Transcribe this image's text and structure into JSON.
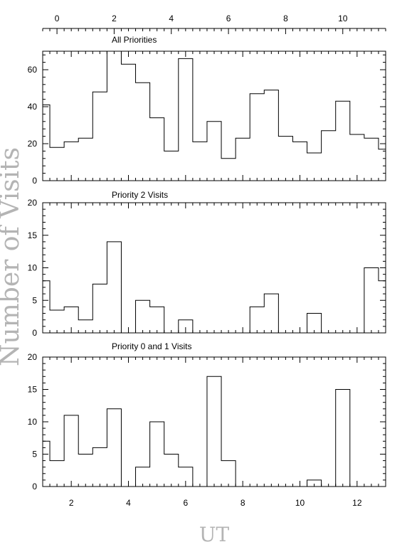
{
  "chart_data": {
    "type": "histogram",
    "ylabel": "Number of Visits",
    "xlabel": "UT",
    "bottom_axis": {
      "range": [
        1,
        13
      ],
      "ticks": [
        2,
        4,
        6,
        8,
        10,
        12
      ]
    },
    "top_axis": {
      "range": [
        -0.5,
        11.5
      ],
      "ticks": [
        0,
        2,
        4,
        6,
        8,
        10
      ]
    },
    "bin_edges": [
      1,
      1.25,
      1.75,
      2.25,
      2.75,
      3.25,
      3.75,
      4.25,
      4.75,
      5.25,
      5.75,
      6.25,
      6.75,
      7.25,
      7.75,
      8.25,
      8.75,
      9.25,
      9.75,
      10.25,
      10.75,
      11.25,
      11.75,
      12.25,
      12.75,
      13
    ],
    "panels": [
      {
        "title": "All Priorities",
        "ylim": [
          0,
          70
        ],
        "yticks": [
          0,
          20,
          40,
          60
        ],
        "values": [
          41,
          18,
          21,
          23,
          48,
          70,
          63,
          53,
          34,
          16,
          66,
          21,
          32,
          12,
          23,
          47,
          49,
          24,
          21,
          15,
          27,
          43,
          25,
          23,
          17
        ]
      },
      {
        "title": "Priority 2 Visits",
        "ylim": [
          0,
          20
        ],
        "yticks": [
          0,
          5,
          10,
          15,
          20
        ],
        "values": [
          8,
          3.5,
          4,
          2,
          7.5,
          14,
          0,
          5,
          4,
          0,
          2,
          0,
          0,
          0,
          0,
          4,
          6,
          0,
          0,
          3,
          0,
          0,
          0,
          10,
          8
        ]
      },
      {
        "title": "Priority 0 and 1 Visits",
        "ylim": [
          0,
          20
        ],
        "yticks": [
          0,
          5,
          10,
          15,
          20
        ],
        "values": [
          7,
          4,
          11,
          5,
          6,
          12,
          0,
          3,
          10,
          5,
          3,
          0,
          17,
          4,
          0,
          0,
          0,
          0,
          0,
          1,
          0,
          15,
          0,
          0,
          0
        ]
      }
    ]
  }
}
